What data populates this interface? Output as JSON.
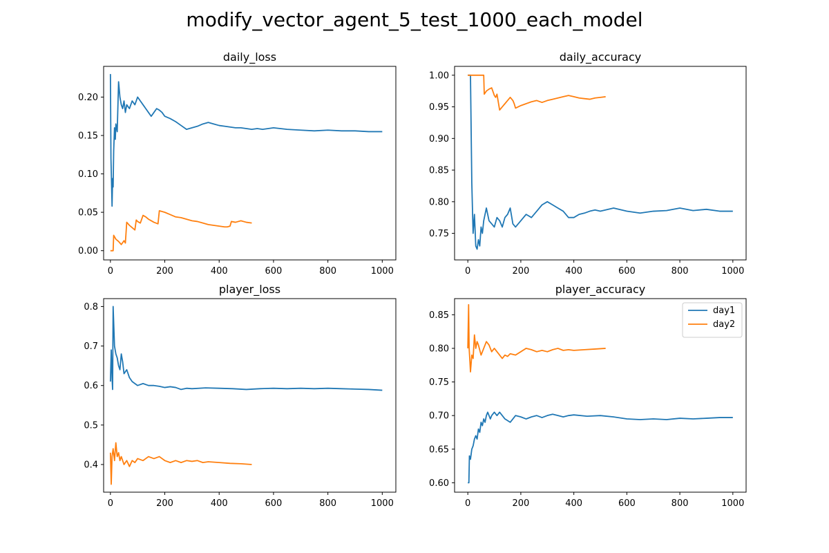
{
  "figure": {
    "title": "modify_vector_agent_5_test_1000_each_model"
  },
  "colors": {
    "day1": "#1f77b4",
    "day2": "#ff7f0e",
    "frame": "#000000",
    "background": "#ffffff"
  },
  "chart_data": [
    {
      "id": "daily_loss",
      "type": "line",
      "title": "daily_loss",
      "xlabel": "",
      "ylabel": "",
      "xlim": [
        -25,
        1050
      ],
      "ylim": [
        -0.012,
        0.24
      ],
      "xticks": [
        0,
        200,
        400,
        600,
        800,
        1000
      ],
      "yticks": [
        0.0,
        0.05,
        0.1,
        0.15,
        0.2
      ],
      "ytick_labels": [
        "0.00",
        "0.05",
        "0.10",
        "0.15",
        "0.20"
      ],
      "grid": false,
      "legend": null,
      "series": [
        {
          "key": "day1",
          "color": "#1f77b4",
          "x": [
            0,
            2,
            4,
            6,
            8,
            10,
            12,
            15,
            18,
            20,
            25,
            30,
            35,
            40,
            45,
            50,
            55,
            60,
            70,
            80,
            90,
            100,
            110,
            120,
            130,
            140,
            150,
            160,
            170,
            180,
            190,
            200,
            220,
            240,
            260,
            280,
            300,
            320,
            340,
            360,
            380,
            400,
            420,
            440,
            460,
            480,
            500,
            520,
            540,
            560,
            580,
            600,
            650,
            700,
            750,
            800,
            850,
            900,
            950,
            1000
          ],
          "y": [
            0.23,
            0.12,
            0.09,
            0.058,
            0.094,
            0.083,
            0.13,
            0.16,
            0.145,
            0.165,
            0.155,
            0.22,
            0.2,
            0.19,
            0.185,
            0.195,
            0.18,
            0.19,
            0.185,
            0.195,
            0.19,
            0.2,
            0.195,
            0.19,
            0.185,
            0.18,
            0.175,
            0.18,
            0.185,
            0.183,
            0.18,
            0.175,
            0.172,
            0.168,
            0.163,
            0.158,
            0.16,
            0.162,
            0.165,
            0.167,
            0.165,
            0.163,
            0.162,
            0.161,
            0.16,
            0.16,
            0.159,
            0.158,
            0.159,
            0.158,
            0.159,
            0.16,
            0.158,
            0.157,
            0.156,
            0.157,
            0.156,
            0.156,
            0.155,
            0.155
          ]
        },
        {
          "key": "day2",
          "color": "#ff7f0e",
          "x": [
            0,
            10,
            12,
            20,
            30,
            40,
            50,
            55,
            60,
            70,
            80,
            90,
            95,
            100,
            110,
            120,
            130,
            140,
            150,
            160,
            175,
            180,
            200,
            220,
            240,
            260,
            280,
            300,
            320,
            340,
            360,
            380,
            400,
            420,
            430,
            440,
            445,
            460,
            480,
            500,
            520
          ],
          "y": [
            0.0,
            0.0,
            0.02,
            0.015,
            0.012,
            0.008,
            0.013,
            0.01,
            0.037,
            0.033,
            0.03,
            0.027,
            0.04,
            0.038,
            0.036,
            0.046,
            0.044,
            0.041,
            0.039,
            0.037,
            0.035,
            0.052,
            0.05,
            0.047,
            0.044,
            0.043,
            0.041,
            0.039,
            0.038,
            0.036,
            0.034,
            0.033,
            0.032,
            0.031,
            0.031,
            0.032,
            0.038,
            0.037,
            0.039,
            0.037,
            0.036
          ]
        }
      ]
    },
    {
      "id": "daily_accuracy",
      "type": "line",
      "title": "daily_accuracy",
      "xlabel": "",
      "ylabel": "",
      "xlim": [
        -50,
        1050
      ],
      "ylim": [
        0.708,
        1.014
      ],
      "xticks": [
        0,
        200,
        400,
        600,
        800,
        1000
      ],
      "yticks": [
        0.75,
        0.8,
        0.85,
        0.9,
        0.95,
        1.0
      ],
      "ytick_labels": [
        "0.75",
        "0.80",
        "0.85",
        "0.90",
        "0.95",
        "1.00"
      ],
      "grid": false,
      "legend": null,
      "series": [
        {
          "key": "day1",
          "color": "#1f77b4",
          "x": [
            0,
            10,
            15,
            18,
            20,
            25,
            30,
            35,
            40,
            45,
            50,
            55,
            60,
            70,
            80,
            90,
            100,
            110,
            120,
            130,
            140,
            150,
            160,
            170,
            180,
            200,
            220,
            240,
            260,
            280,
            300,
            320,
            340,
            360,
            380,
            400,
            420,
            440,
            460,
            480,
            500,
            550,
            600,
            650,
            700,
            750,
            800,
            850,
            900,
            950,
            1000
          ],
          "y": [
            1.0,
            1.0,
            0.83,
            0.78,
            0.75,
            0.78,
            0.73,
            0.725,
            0.74,
            0.73,
            0.76,
            0.75,
            0.77,
            0.79,
            0.77,
            0.765,
            0.76,
            0.775,
            0.77,
            0.76,
            0.775,
            0.78,
            0.79,
            0.765,
            0.76,
            0.77,
            0.78,
            0.775,
            0.785,
            0.795,
            0.8,
            0.795,
            0.79,
            0.785,
            0.775,
            0.775,
            0.78,
            0.782,
            0.785,
            0.787,
            0.785,
            0.79,
            0.785,
            0.782,
            0.785,
            0.786,
            0.79,
            0.786,
            0.788,
            0.785,
            0.785
          ]
        },
        {
          "key": "day2",
          "color": "#ff7f0e",
          "x": [
            0,
            20,
            40,
            60,
            62,
            70,
            80,
            90,
            100,
            105,
            110,
            120,
            130,
            140,
            150,
            160,
            170,
            175,
            180,
            200,
            220,
            240,
            260,
            280,
            300,
            320,
            340,
            360,
            380,
            400,
            420,
            440,
            460,
            480,
            500,
            520
          ],
          "y": [
            1.0,
            1.0,
            1.0,
            1.0,
            0.97,
            0.975,
            0.978,
            0.98,
            0.968,
            0.965,
            0.97,
            0.945,
            0.95,
            0.955,
            0.96,
            0.965,
            0.96,
            0.955,
            0.948,
            0.952,
            0.955,
            0.958,
            0.96,
            0.957,
            0.96,
            0.962,
            0.964,
            0.966,
            0.968,
            0.966,
            0.964,
            0.963,
            0.962,
            0.964,
            0.965,
            0.966
          ]
        }
      ]
    },
    {
      "id": "player_loss",
      "type": "line",
      "title": "player_loss",
      "xlabel": "",
      "ylabel": "",
      "xlim": [
        -25,
        1050
      ],
      "ylim": [
        0.33,
        0.82
      ],
      "xticks": [
        0,
        200,
        400,
        600,
        800,
        1000
      ],
      "yticks": [
        0.4,
        0.5,
        0.6,
        0.7,
        0.8
      ],
      "ytick_labels": [
        "0.4",
        "0.5",
        "0.6",
        "0.7",
        "0.8"
      ],
      "grid": false,
      "legend": null,
      "series": [
        {
          "key": "day1",
          "color": "#1f77b4",
          "x": [
            0,
            3,
            6,
            8,
            10,
            15,
            20,
            25,
            30,
            35,
            40,
            45,
            50,
            60,
            70,
            80,
            90,
            100,
            120,
            140,
            160,
            180,
            200,
            220,
            240,
            260,
            280,
            300,
            350,
            400,
            450,
            500,
            550,
            600,
            650,
            700,
            750,
            800,
            850,
            900,
            950,
            1000
          ],
          "y": [
            0.61,
            0.69,
            0.62,
            0.59,
            0.8,
            0.7,
            0.68,
            0.67,
            0.65,
            0.64,
            0.68,
            0.66,
            0.63,
            0.64,
            0.62,
            0.61,
            0.605,
            0.6,
            0.605,
            0.6,
            0.6,
            0.598,
            0.595,
            0.597,
            0.595,
            0.59,
            0.593,
            0.592,
            0.594,
            0.593,
            0.592,
            0.59,
            0.592,
            0.593,
            0.592,
            0.593,
            0.592,
            0.593,
            0.592,
            0.591,
            0.59,
            0.588
          ]
        },
        {
          "key": "day2",
          "color": "#ff7f0e",
          "x": [
            0,
            3,
            6,
            10,
            15,
            20,
            25,
            30,
            35,
            40,
            50,
            60,
            70,
            80,
            90,
            100,
            120,
            140,
            160,
            180,
            200,
            220,
            240,
            260,
            280,
            300,
            320,
            340,
            360,
            400,
            440,
            480,
            520
          ],
          "y": [
            0.43,
            0.35,
            0.42,
            0.44,
            0.41,
            0.455,
            0.42,
            0.43,
            0.41,
            0.42,
            0.4,
            0.41,
            0.395,
            0.41,
            0.405,
            0.415,
            0.41,
            0.42,
            0.415,
            0.42,
            0.41,
            0.405,
            0.41,
            0.405,
            0.41,
            0.408,
            0.41,
            0.405,
            0.407,
            0.405,
            0.403,
            0.402,
            0.4
          ]
        }
      ]
    },
    {
      "id": "player_accuracy",
      "type": "line",
      "title": "player_accuracy",
      "xlabel": "",
      "ylabel": "",
      "xlim": [
        -50,
        1050
      ],
      "ylim": [
        0.586,
        0.874
      ],
      "xticks": [
        0,
        200,
        400,
        600,
        800,
        1000
      ],
      "yticks": [
        0.6,
        0.65,
        0.7,
        0.75,
        0.8,
        0.85
      ],
      "ytick_labels": [
        "0.60",
        "0.65",
        "0.70",
        "0.75",
        "0.80",
        "0.85"
      ],
      "grid": false,
      "legend": {
        "placement": "top-right",
        "entries": [
          {
            "label": "day1",
            "color": "#1f77b4"
          },
          {
            "label": "day2",
            "color": "#ff7f0e"
          }
        ]
      },
      "series": [
        {
          "key": "day1",
          "color": "#1f77b4",
          "x": [
            0,
            4,
            6,
            10,
            15,
            20,
            25,
            30,
            35,
            40,
            45,
            50,
            55,
            60,
            65,
            70,
            75,
            80,
            85,
            90,
            100,
            110,
            120,
            130,
            140,
            160,
            180,
            200,
            220,
            240,
            260,
            280,
            300,
            320,
            340,
            360,
            380,
            400,
            450,
            500,
            550,
            600,
            650,
            700,
            750,
            800,
            850,
            900,
            950,
            1000
          ],
          "y": [
            0.6,
            0.6,
            0.64,
            0.635,
            0.65,
            0.655,
            0.665,
            0.67,
            0.665,
            0.68,
            0.675,
            0.69,
            0.685,
            0.695,
            0.69,
            0.7,
            0.705,
            0.7,
            0.695,
            0.7,
            0.705,
            0.7,
            0.705,
            0.7,
            0.695,
            0.69,
            0.7,
            0.698,
            0.695,
            0.698,
            0.7,
            0.697,
            0.7,
            0.702,
            0.7,
            0.698,
            0.7,
            0.701,
            0.699,
            0.7,
            0.698,
            0.695,
            0.694,
            0.695,
            0.694,
            0.696,
            0.695,
            0.696,
            0.697,
            0.697
          ]
        },
        {
          "key": "day2",
          "color": "#ff7f0e",
          "x": [
            0,
            3,
            5,
            8,
            10,
            15,
            20,
            25,
            30,
            35,
            40,
            50,
            60,
            70,
            80,
            90,
            100,
            110,
            120,
            130,
            140,
            150,
            160,
            180,
            200,
            220,
            240,
            260,
            280,
            300,
            320,
            340,
            360,
            380,
            400,
            440,
            480,
            520
          ],
          "y": [
            0.8,
            0.865,
            0.8,
            0.78,
            0.765,
            0.79,
            0.785,
            0.82,
            0.8,
            0.81,
            0.805,
            0.79,
            0.8,
            0.81,
            0.805,
            0.795,
            0.8,
            0.795,
            0.79,
            0.785,
            0.79,
            0.788,
            0.792,
            0.79,
            0.795,
            0.8,
            0.798,
            0.795,
            0.797,
            0.795,
            0.798,
            0.8,
            0.797,
            0.798,
            0.797,
            0.798,
            0.799,
            0.8
          ]
        }
      ]
    }
  ]
}
